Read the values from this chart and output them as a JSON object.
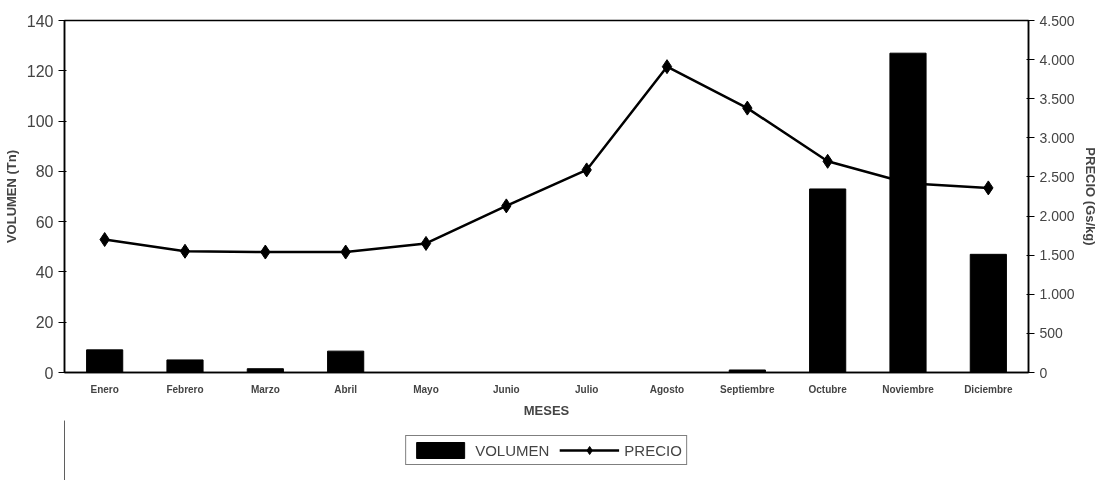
{
  "chart_data": {
    "type": "bar",
    "xlabel": "MESES",
    "ylabel": "VOLUMEN (Tn)",
    "y2label": "PRECIO (Gs/kg)",
    "categories": [
      "Enero",
      "Febrero",
      "Marzo",
      "Abril",
      "Mayo",
      "Junio",
      "Julio",
      "Agosto",
      "Septiembre",
      "Octubre",
      "Noviembre",
      "Diciembre"
    ],
    "series": [
      {
        "name": "VOLUMEN",
        "color": "#000000",
        "values": [
          9,
          5,
          1.5,
          8.5,
          0,
          0,
          0,
          0,
          1,
          73,
          127,
          47
        ]
      },
      {
        "name": "PRECIO",
        "type": "line",
        "axis": "y2",
        "color": "#000000",
        "marker": "diamond",
        "line_style": "solid",
        "values": [
          1700,
          1550,
          1540,
          1540,
          1650,
          2130,
          2590,
          3910,
          3380,
          2700,
          2420,
          2360
        ]
      }
    ],
    "ylim": [
      0,
      140
    ],
    "yticks": [
      0,
      20,
      40,
      60,
      80,
      100,
      120,
      140
    ],
    "y2lim": [
      0,
      4500
    ],
    "y2ticks": [
      0,
      {
        "value": 500,
        "label": "500"
      },
      {
        "value": 1000,
        "label": "1.000"
      },
      {
        "value": 1500,
        "label": "1.500"
      },
      {
        "value": 2000,
        "label": "2.000"
      },
      {
        "value": 2500,
        "label": "2.500"
      },
      {
        "value": 3000,
        "label": "3.000"
      },
      {
        "value": 3500,
        "label": "3.500"
      },
      {
        "value": 4000,
        "label": "4.000"
      },
      {
        "value": 4500,
        "label": "4.500"
      }
    ],
    "grid": false,
    "legend": "bottom"
  }
}
